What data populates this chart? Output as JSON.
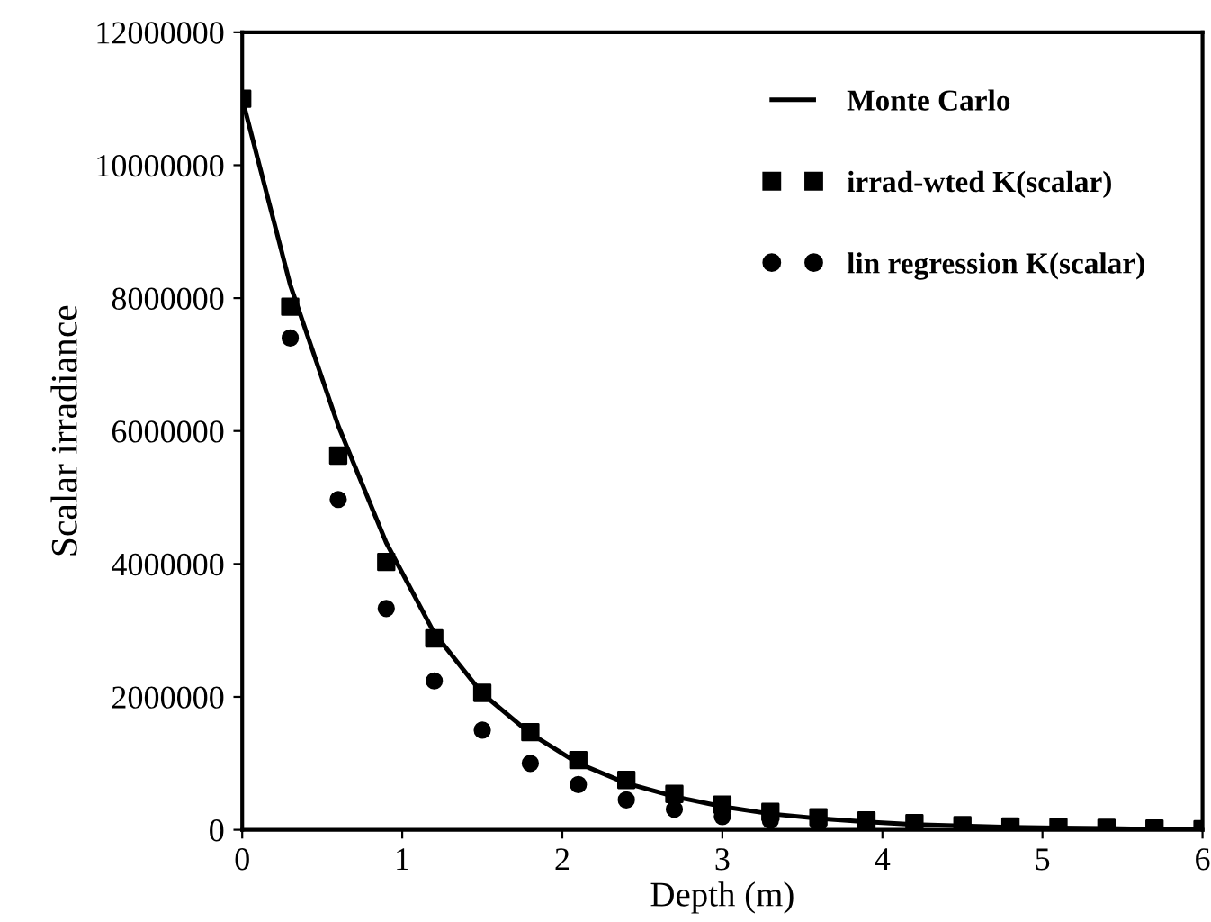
{
  "chart_data": {
    "type": "line",
    "xlabel": "Depth (m)",
    "ylabel": "Scalar irradiance",
    "x": [
      0,
      0.3,
      0.6,
      0.9,
      1.2,
      1.5,
      1.8,
      2.1,
      2.4,
      2.7,
      3.0,
      3.3,
      3.6,
      3.9,
      4.2,
      4.5,
      4.8,
      5.1,
      5.4,
      5.7,
      6.0
    ],
    "series": [
      {
        "name": "Monte Carlo",
        "color": "#000000",
        "marker": "none",
        "line_style": "solid",
        "values": [
          11000000,
          8200000,
          6080000,
          4320000,
          2960000,
          2050000,
          1450000,
          1000000,
          700000,
          500000,
          350000,
          240000,
          170000,
          120000,
          80000,
          60000,
          40000,
          30000,
          20000,
          10000,
          10000
        ]
      },
      {
        "name": "irrad-wted K(scalar)",
        "type": "scatter",
        "color": "#000000",
        "marker": "square",
        "values": [
          11000000,
          7870000,
          5630000,
          4030000,
          2880000,
          2060000,
          1470000,
          1050000,
          750000,
          540000,
          380000,
          270000,
          190000,
          140000,
          100000,
          70000,
          50000,
          40000,
          30000,
          20000,
          10000
        ]
      },
      {
        "name": "lin regression K(scalar)",
        "type": "scatter",
        "color": "#000000",
        "marker": "circle",
        "values": [
          null,
          7400000,
          4970000,
          3330000,
          2240000,
          1500000,
          1000000,
          680000,
          450000,
          310000,
          200000,
          140000,
          90000,
          null,
          null,
          null,
          null,
          null,
          null,
          null,
          null
        ]
      }
    ],
    "xlim": [
      0,
      6
    ],
    "xticks": [
      0,
      1,
      2,
      3,
      4,
      5,
      6
    ],
    "ylim": [
      0,
      12000000
    ],
    "yticks": [
      0,
      2000000,
      4000000,
      6000000,
      8000000,
      10000000,
      12000000
    ],
    "grid": false,
    "legend": "top right"
  }
}
